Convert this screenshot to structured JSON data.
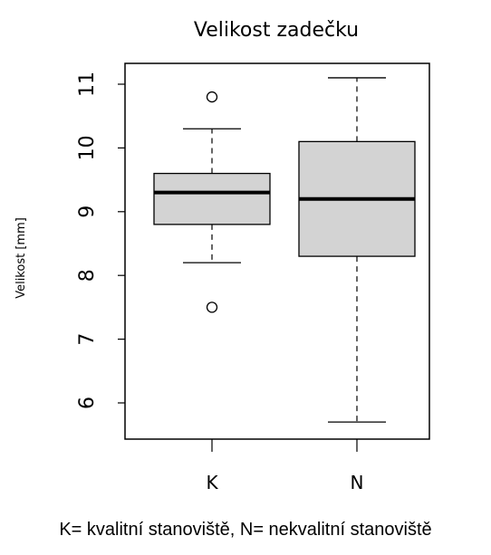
{
  "chart_data": {
    "type": "boxplot",
    "title": "Velikost zadečku",
    "xlabel": "",
    "ylabel": "Velikost [mm]",
    "ylim": [
      5.5,
      11.3
    ],
    "yticks": [
      6,
      7,
      8,
      9,
      10,
      11
    ],
    "categories": [
      "K",
      "N"
    ],
    "boxes": [
      {
        "category": "K",
        "whisker_low": 8.2,
        "q1": 8.8,
        "median": 9.3,
        "q3": 9.6,
        "whisker_high": 10.3,
        "outliers": [
          10.8,
          7.5
        ]
      },
      {
        "category": "N",
        "whisker_low": 5.7,
        "q1": 8.3,
        "median": 9.2,
        "q3": 10.1,
        "whisker_high": 11.1,
        "outliers": []
      }
    ],
    "colors": {
      "box_fill": "#d3d3d3",
      "stroke": "#000000"
    }
  },
  "caption": "K= kvalitní stanoviště, N= nekvalitní stanoviště"
}
